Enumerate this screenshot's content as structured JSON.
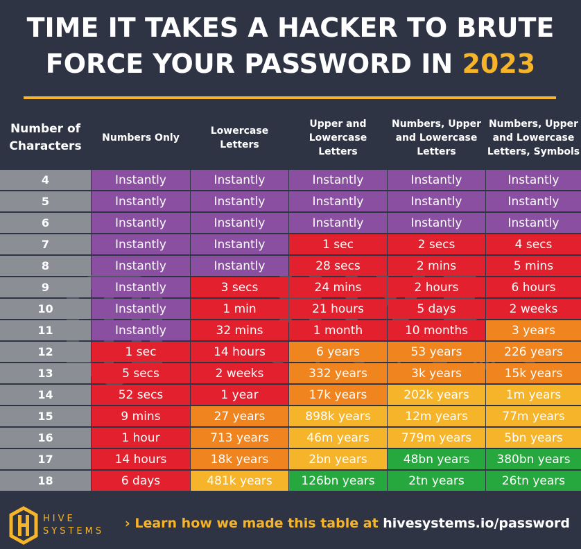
{
  "title": {
    "line1": "TIME IT TAKES A HACKER TO BRUTE",
    "line2_prefix": "FORCE YOUR PASSWORD IN ",
    "line2_year": "2023"
  },
  "colors": {
    "background": "#2e3444",
    "accent": "#f5b42a",
    "instantly": "#8a4fa0",
    "red": "#e3212e",
    "orange": "#f0841f",
    "yellow": "#f5b42a",
    "green": "#27a83f",
    "number_column": "#8b8e95"
  },
  "chart_data": {
    "type": "table",
    "columns": [
      "Number of Characters",
      "Numbers Only",
      "Lowercase Letters",
      "Upper and Lowercase Letters",
      "Numbers, Upper and Lowercase Letters",
      "Numbers, Upper and Lowercase Letters, Symbols"
    ],
    "rows": [
      {
        "chars": "4",
        "values": [
          "Instantly",
          "Instantly",
          "Instantly",
          "Instantly",
          "Instantly"
        ],
        "levels": [
          "instantly",
          "instantly",
          "instantly",
          "instantly",
          "instantly"
        ]
      },
      {
        "chars": "5",
        "values": [
          "Instantly",
          "Instantly",
          "Instantly",
          "Instantly",
          "Instantly"
        ],
        "levels": [
          "instantly",
          "instantly",
          "instantly",
          "instantly",
          "instantly"
        ]
      },
      {
        "chars": "6",
        "values": [
          "Instantly",
          "Instantly",
          "Instantly",
          "Instantly",
          "Instantly"
        ],
        "levels": [
          "instantly",
          "instantly",
          "instantly",
          "instantly",
          "instantly"
        ]
      },
      {
        "chars": "7",
        "values": [
          "Instantly",
          "Instantly",
          "1 sec",
          "2 secs",
          "4 secs"
        ],
        "levels": [
          "instantly",
          "instantly",
          "red",
          "red",
          "red"
        ]
      },
      {
        "chars": "8",
        "values": [
          "Instantly",
          "Instantly",
          "28 secs",
          "2 mins",
          "5 mins"
        ],
        "levels": [
          "instantly",
          "instantly",
          "red",
          "red",
          "red"
        ]
      },
      {
        "chars": "9",
        "values": [
          "Instantly",
          "3 secs",
          "24 mins",
          "2 hours",
          "6 hours"
        ],
        "levels": [
          "instantly",
          "red",
          "red",
          "red",
          "red"
        ]
      },
      {
        "chars": "10",
        "values": [
          "Instantly",
          "1 min",
          "21 hours",
          "5 days",
          "2 weeks"
        ],
        "levels": [
          "instantly",
          "red",
          "red",
          "red",
          "red"
        ]
      },
      {
        "chars": "11",
        "values": [
          "Instantly",
          "32 mins",
          "1 month",
          "10 months",
          "3 years"
        ],
        "levels": [
          "instantly",
          "red",
          "red",
          "red",
          "orange"
        ]
      },
      {
        "chars": "12",
        "values": [
          "1 sec",
          "14 hours",
          "6 years",
          "53 years",
          "226 years"
        ],
        "levels": [
          "red",
          "red",
          "orange",
          "orange",
          "orange"
        ]
      },
      {
        "chars": "13",
        "values": [
          "5 secs",
          "2 weeks",
          "332 years",
          "3k years",
          "15k years"
        ],
        "levels": [
          "red",
          "red",
          "orange",
          "orange",
          "orange"
        ]
      },
      {
        "chars": "14",
        "values": [
          "52 secs",
          "1 year",
          "17k years",
          "202k years",
          "1m years"
        ],
        "levels": [
          "red",
          "red",
          "orange",
          "yellow",
          "yellow"
        ]
      },
      {
        "chars": "15",
        "values": [
          "9 mins",
          "27 years",
          "898k years",
          "12m years",
          "77m years"
        ],
        "levels": [
          "red",
          "orange",
          "yellow",
          "yellow",
          "yellow"
        ]
      },
      {
        "chars": "16",
        "values": [
          "1 hour",
          "713 years",
          "46m years",
          "779m years",
          "5bn years"
        ],
        "levels": [
          "red",
          "orange",
          "yellow",
          "yellow",
          "yellow"
        ]
      },
      {
        "chars": "17",
        "values": [
          "14 hours",
          "18k years",
          "2bn years",
          "48bn years",
          "380bn years"
        ],
        "levels": [
          "red",
          "orange",
          "yellow",
          "green",
          "green"
        ]
      },
      {
        "chars": "18",
        "values": [
          "6 days",
          "481k years",
          "126bn years",
          "2tn years",
          "26tn years"
        ],
        "levels": [
          "red",
          "yellow",
          "green",
          "green",
          "green"
        ]
      }
    ]
  },
  "header_labels": [
    "Number of\nCharacters",
    "Numbers Only",
    "Lowercase\nLetters",
    "Upper and\nLowercase\nLetters",
    "Numbers, Upper\nand Lowercase\nLetters",
    "Numbers, Upper\nand Lowercase\nLetters, Symbols"
  ],
  "watermark": {
    "line1": "HIVE",
    "line2": "SYSTEMS"
  },
  "footer": {
    "logo_text": "HIVE\nSYSTEMS",
    "link_prefix": "› Learn how we made this table at ",
    "link_url": "hivesystems.io/password"
  }
}
